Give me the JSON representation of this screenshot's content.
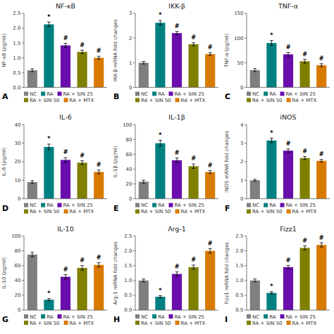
{
  "chart_data": [
    {
      "type": "bar",
      "title": "NF-κB",
      "y_label": "NF-κB (pg/ml)",
      "panel_label": "A",
      "categories": [
        "NC",
        "RA",
        "RA + SIN 25",
        "RA + SIN 50",
        "RA + MTX"
      ],
      "values": [
        0.58,
        2.13,
        1.42,
        1.2,
        1.0
      ],
      "errors": [
        0.05,
        0.08,
        0.07,
        0.06,
        0.05
      ],
      "annotations": [
        null,
        "*",
        "#",
        "#",
        "#"
      ],
      "colors": [
        "#7f7f7f",
        "#008080",
        "#6a0dad",
        "#808000",
        "#d97a00"
      ],
      "ylim": [
        0,
        2.5
      ],
      "yticks": [
        {
          "value": 0,
          "label": "0.0"
        },
        0.5,
        {
          "value": 1,
          "label": "1.0"
        },
        1.5,
        {
          "value": 2,
          "label": "2.0"
        },
        2.5
      ],
      "legend": "bottom",
      "tick_labels": "y"
    },
    {
      "type": "bar",
      "title": "IKK-β",
      "y_label": "IKK-β mRNA fold changes",
      "panel_label": "B",
      "categories": [
        "NC",
        "RA",
        "RA + SIN 25",
        "RA + SIN 50",
        "RA + MTX"
      ],
      "values": [
        1.0,
        2.62,
        2.2,
        1.75,
        1.35
      ],
      "errors": [
        0.05,
        0.09,
        0.07,
        0.06,
        0.06
      ],
      "annotations": [
        null,
        "*",
        "#",
        "#",
        "#"
      ],
      "colors": [
        "#7f7f7f",
        "#008080",
        "#6a0dad",
        "#808000",
        "#d97a00"
      ],
      "ylim": [
        0,
        3
      ],
      "yticks": [
        0,
        1,
        2,
        3
      ],
      "legend": "bottom",
      "tick_labels": "y"
    },
    {
      "type": "bar",
      "title": "TNF-α",
      "y_label": "TNF-α (pg/ml)",
      "panel_label": "C",
      "categories": [
        "NC",
        "RA",
        "RA + SIN 25",
        "RA + SIN 50",
        "RA + MTX"
      ],
      "values": [
        35,
        90,
        67,
        53,
        45
      ],
      "errors": [
        3,
        5,
        4,
        4,
        3
      ],
      "annotations": [
        null,
        "*",
        "#",
        "#",
        "#"
      ],
      "colors": [
        "#7f7f7f",
        "#008080",
        "#6a0dad",
        "#808000",
        "#d97a00"
      ],
      "ylim": [
        0,
        150
      ],
      "yticks": [
        0,
        50,
        100,
        150
      ],
      "legend": "bottom",
      "tick_labels": "y"
    },
    {
      "type": "bar",
      "title": "IL-6",
      "y_label": "IL-6 (pg/ml)",
      "panel_label": "D",
      "categories": [
        "NC",
        "RA",
        "RA + SIN 25",
        "RA + SIN 50",
        "RA + MTX"
      ],
      "values": [
        9,
        28,
        21,
        19.5,
        14.5
      ],
      "errors": [
        0.8,
        1.5,
        1.2,
        1.0,
        1.0
      ],
      "annotations": [
        null,
        "*",
        "#",
        "#",
        "#"
      ],
      "colors": [
        "#7f7f7f",
        "#008080",
        "#6a0dad",
        "#808000",
        "#d97a00"
      ],
      "ylim": [
        0,
        40
      ],
      "yticks": [
        0,
        10,
        20,
        30,
        40
      ],
      "legend": "bottom",
      "tick_labels": "y"
    },
    {
      "type": "bar",
      "title": "IL-1β",
      "y_label": "IL-1β (pg/ml)",
      "panel_label": "E",
      "categories": [
        "NC",
        "RA",
        "RA + SIN 25",
        "RA + SIN 50",
        "RA + MTX"
      ],
      "values": [
        23,
        75,
        52,
        44,
        36
      ],
      "errors": [
        2,
        4,
        3,
        3,
        2
      ],
      "annotations": [
        null,
        "*",
        "#",
        "#",
        "#"
      ],
      "colors": [
        "#7f7f7f",
        "#008080",
        "#6a0dad",
        "#808000",
        "#d97a00"
      ],
      "ylim": [
        0,
        100
      ],
      "yticks": [
        0,
        20,
        40,
        60,
        80,
        100
      ],
      "legend": "bottom",
      "tick_labels": "y"
    },
    {
      "type": "bar",
      "title": "iNOS",
      "y_label": "iNOS mRNA fold changes",
      "panel_label": "F",
      "categories": [
        "NC",
        "RA",
        "RA + SIN 25",
        "RA + SIN 50",
        "RA + MTX"
      ],
      "values": [
        1.0,
        3.15,
        2.6,
        2.2,
        2.05
      ],
      "errors": [
        0.05,
        0.12,
        0.09,
        0.08,
        0.07
      ],
      "annotations": [
        null,
        "*",
        "#",
        "#",
        "#"
      ],
      "colors": [
        "#7f7f7f",
        "#008080",
        "#6a0dad",
        "#808000",
        "#d97a00"
      ],
      "ylim": [
        0,
        4
      ],
      "yticks": [
        0,
        1,
        2,
        3,
        4
      ],
      "legend": "bottom",
      "tick_labels": "y"
    },
    {
      "type": "bar",
      "title": "IL-10",
      "y_label": "IL-10 (pg/ml)",
      "panel_label": "G",
      "categories": [
        "NC",
        "RA",
        "RA + SIN 25",
        "RA + SIN 50",
        "RA + MTX"
      ],
      "values": [
        75,
        14,
        45,
        57,
        61
      ],
      "errors": [
        3,
        1.5,
        3,
        3,
        3
      ],
      "annotations": [
        null,
        "*",
        "#",
        "#",
        "#"
      ],
      "colors": [
        "#7f7f7f",
        "#008080",
        "#6a0dad",
        "#808000",
        "#d97a00"
      ],
      "ylim": [
        0,
        100
      ],
      "yticks": [
        0,
        20,
        40,
        60,
        80,
        100
      ],
      "legend": "bottom",
      "tick_labels": "y"
    },
    {
      "type": "bar",
      "title": "Arg-1",
      "y_label": "Arg-1 mRNA fold changes",
      "panel_label": "H",
      "categories": [
        "NC",
        "RA",
        "RA + SIN 25",
        "RA + SIN 50",
        "RA + MTX"
      ],
      "values": [
        1.0,
        0.45,
        1.22,
        1.45,
        2.0
      ],
      "errors": [
        0.05,
        0.04,
        0.07,
        0.07,
        0.08
      ],
      "annotations": [
        null,
        "*",
        "#",
        "#",
        "#"
      ],
      "colors": [
        "#7f7f7f",
        "#008080",
        "#6a0dad",
        "#808000",
        "#d97a00"
      ],
      "ylim": [
        0,
        2.5
      ],
      "yticks": [
        {
          "value": 0,
          "label": "0.0"
        },
        0.5,
        {
          "value": 1,
          "label": "1.0"
        },
        1.5,
        {
          "value": 2,
          "label": "2.0"
        },
        2.5
      ],
      "legend": "bottom",
      "tick_labels": "y"
    },
    {
      "type": "bar",
      "title": "Fizz1",
      "y_label": "Fizz1 mRNA fold changes",
      "panel_label": "I",
      "categories": [
        "NC",
        "RA",
        "RA + SIN 25",
        "RA + SIN 50",
        "RA + MTX"
      ],
      "values": [
        1.0,
        0.58,
        1.45,
        2.1,
        2.2
      ],
      "errors": [
        0.05,
        0.04,
        0.06,
        0.07,
        0.07
      ],
      "annotations": [
        null,
        "*",
        "#",
        "#",
        "#"
      ],
      "colors": [
        "#7f7f7f",
        "#008080",
        "#6a0dad",
        "#808000",
        "#d97a00"
      ],
      "ylim": [
        0,
        2.5
      ],
      "yticks": [
        {
          "value": 0,
          "label": "0.0"
        },
        0.5,
        {
          "value": 1,
          "label": "1.0"
        },
        1.5,
        {
          "value": 2,
          "label": "2.0"
        },
        2.5
      ],
      "legend": "bottom",
      "tick_labels": "y"
    }
  ]
}
